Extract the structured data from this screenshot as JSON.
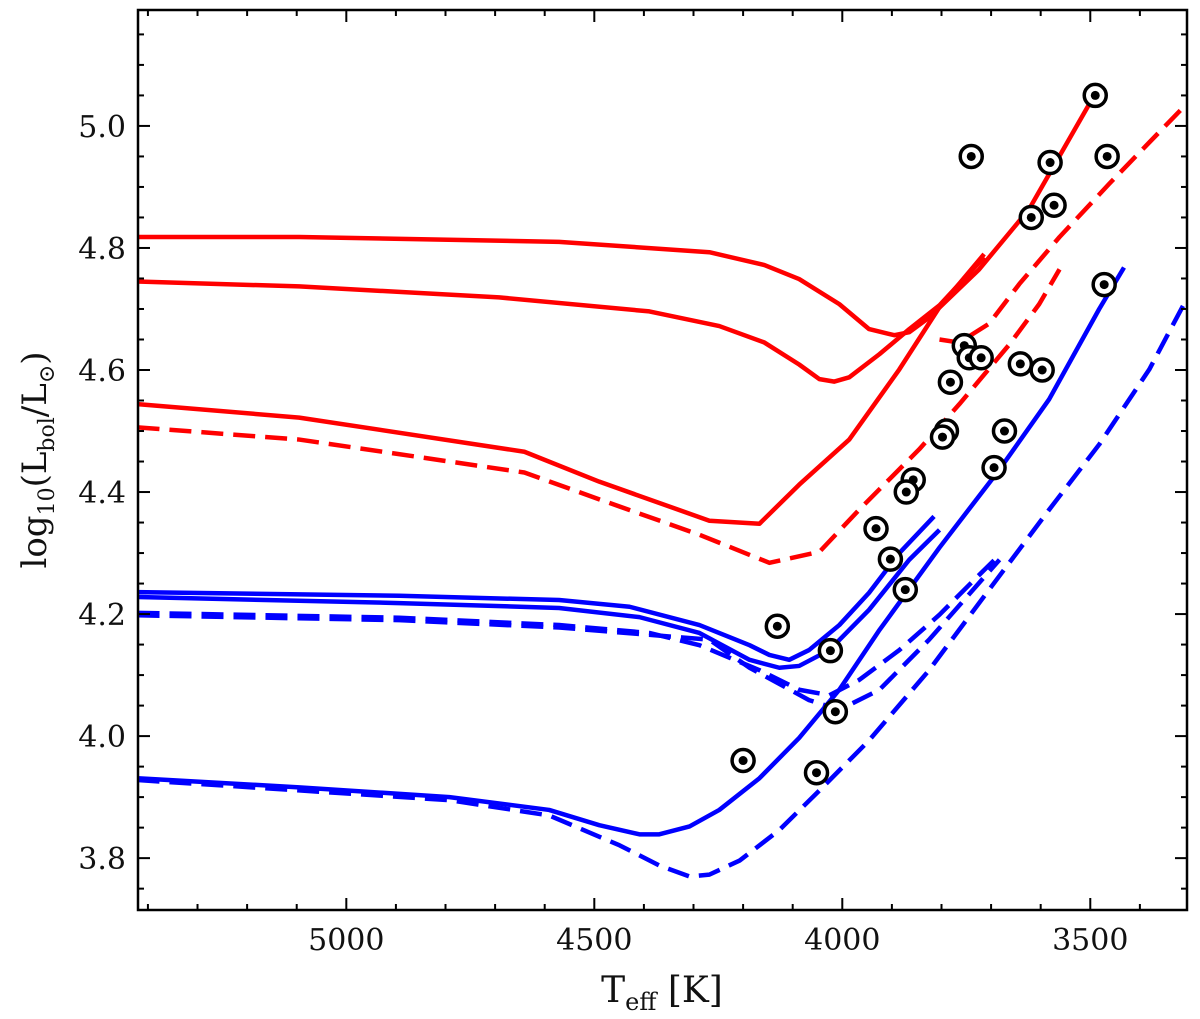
{
  "chart_data": {
    "type": "line",
    "title": "",
    "xlabel": {
      "main": "T",
      "sub": "eff",
      "rest": " [K]"
    },
    "ylabel": {
      "pre": "log",
      "sub1": "10",
      "mid": "(L",
      "sub2": "bol",
      "mid2": "/L",
      "sub3": "⊙",
      "post": ")"
    },
    "xlim": [
      5420,
      3305
    ],
    "ylim": [
      3.715,
      5.19
    ],
    "x_reversed": true,
    "xticks": [
      5000,
      4500,
      4000,
      3500
    ],
    "xtick_labels": [
      "5000",
      "4500",
      "4000",
      "3500"
    ],
    "yticks": [
      3.8,
      4.0,
      4.2,
      4.4,
      4.6,
      4.8,
      5.0
    ],
    "ytick_labels": [
      "3.8",
      "4.0",
      "4.2",
      "4.4",
      "4.6",
      "4.8",
      "5.0"
    ],
    "grid": false,
    "colors": {
      "red": "#ff0000",
      "blue": "#0000ff",
      "marker": "#000000"
    },
    "series": [
      {
        "color": "#ff0000",
        "style": "solid",
        "points": [
          [
            5421,
            4.818
          ],
          [
            5095,
            4.818
          ],
          [
            4571,
            4.81
          ],
          [
            4268,
            4.793
          ],
          [
            4157,
            4.772
          ],
          [
            4087,
            4.749
          ],
          [
            4006,
            4.708
          ],
          [
            3946,
            4.667
          ],
          [
            3895,
            4.657
          ],
          [
            3865,
            4.662
          ],
          [
            3825,
            4.686
          ],
          [
            3724,
            4.765
          ],
          [
            3623,
            4.864
          ],
          [
            3502,
            5.036
          ],
          [
            3482,
            5.06
          ]
        ]
      },
      {
        "color": "#ff0000",
        "style": "solid",
        "points": [
          [
            5421,
            4.745
          ],
          [
            5095,
            4.737
          ],
          [
            4692,
            4.719
          ],
          [
            4389,
            4.696
          ],
          [
            4248,
            4.672
          ],
          [
            4157,
            4.645
          ],
          [
            4087,
            4.609
          ],
          [
            4046,
            4.585
          ],
          [
            4016,
            4.581
          ],
          [
            3986,
            4.588
          ],
          [
            3925,
            4.626
          ],
          [
            3865,
            4.667
          ],
          [
            3804,
            4.706
          ],
          [
            3714,
            4.785
          ]
        ]
      },
      {
        "color": "#ff0000",
        "style": "solid",
        "points": [
          [
            5421,
            4.544
          ],
          [
            5095,
            4.522
          ],
          [
            4641,
            4.466
          ],
          [
            4490,
            4.417
          ],
          [
            4268,
            4.353
          ],
          [
            4167,
            4.348
          ],
          [
            4087,
            4.412
          ],
          [
            3986,
            4.486
          ],
          [
            3885,
            4.601
          ],
          [
            3804,
            4.703
          ],
          [
            3714,
            4.79
          ]
        ]
      },
      {
        "color": "#ff0000",
        "style": "dashed",
        "points": [
          [
            3804,
            4.65
          ],
          [
            3764,
            4.645
          ],
          [
            3704,
            4.676
          ],
          [
            3643,
            4.741
          ],
          [
            3562,
            4.818
          ],
          [
            3462,
            4.905
          ],
          [
            3306,
            5.036
          ]
        ]
      },
      {
        "color": "#ff0000",
        "style": "dashed",
        "points": [
          [
            5421,
            4.506
          ],
          [
            5095,
            4.486
          ],
          [
            4641,
            4.432
          ],
          [
            4490,
            4.388
          ],
          [
            4288,
            4.33
          ],
          [
            4147,
            4.284
          ],
          [
            4046,
            4.302
          ],
          [
            3966,
            4.371
          ],
          [
            3845,
            4.47
          ],
          [
            3764,
            4.544
          ],
          [
            3663,
            4.642
          ],
          [
            3603,
            4.708
          ],
          [
            3562,
            4.765
          ]
        ]
      },
      {
        "color": "#0000ff",
        "style": "solid",
        "points": [
          [
            5421,
            4.236
          ],
          [
            4893,
            4.23
          ],
          [
            4571,
            4.223
          ],
          [
            4429,
            4.212
          ],
          [
            4288,
            4.182
          ],
          [
            4187,
            4.149
          ],
          [
            4147,
            4.133
          ],
          [
            4107,
            4.125
          ],
          [
            4067,
            4.141
          ],
          [
            4006,
            4.182
          ],
          [
            3946,
            4.235
          ],
          [
            3885,
            4.3
          ],
          [
            3815,
            4.36
          ]
        ]
      },
      {
        "color": "#0000ff",
        "style": "solid",
        "points": [
          [
            5421,
            4.228
          ],
          [
            4893,
            4.218
          ],
          [
            4571,
            4.21
          ],
          [
            4409,
            4.195
          ],
          [
            4288,
            4.169
          ],
          [
            4187,
            4.125
          ],
          [
            4127,
            4.112
          ],
          [
            4087,
            4.115
          ],
          [
            4026,
            4.141
          ],
          [
            3946,
            4.207
          ],
          [
            3865,
            4.289
          ],
          [
            3804,
            4.338
          ]
        ]
      },
      {
        "color": "#0000ff",
        "style": "solid",
        "points": [
          [
            5421,
            3.931
          ],
          [
            5095,
            3.916
          ],
          [
            4792,
            3.9
          ],
          [
            4591,
            3.879
          ],
          [
            4490,
            3.854
          ],
          [
            4409,
            3.839
          ],
          [
            4369,
            3.839
          ],
          [
            4308,
            3.852
          ],
          [
            4248,
            3.879
          ],
          [
            4167,
            3.931
          ],
          [
            4087,
            3.997
          ],
          [
            4006,
            4.076
          ],
          [
            3925,
            4.174
          ],
          [
            3804,
            4.309
          ],
          [
            3683,
            4.437
          ],
          [
            3583,
            4.552
          ],
          [
            3482,
            4.7
          ],
          [
            3432,
            4.768
          ]
        ]
      },
      {
        "color": "#0000ff",
        "style": "dashed",
        "points": [
          [
            5421,
            4.202
          ],
          [
            4893,
            4.194
          ],
          [
            4571,
            4.182
          ],
          [
            4389,
            4.169
          ],
          [
            4288,
            4.149
          ],
          [
            4167,
            4.108
          ],
          [
            4087,
            4.076
          ],
          [
            4026,
            4.067
          ],
          [
            3966,
            4.092
          ],
          [
            3885,
            4.141
          ],
          [
            3804,
            4.199
          ],
          [
            3744,
            4.248
          ],
          [
            3683,
            4.297
          ]
        ]
      },
      {
        "color": "#0000ff",
        "style": "dashed",
        "points": [
          [
            5421,
            4.198
          ],
          [
            4893,
            4.19
          ],
          [
            4571,
            4.178
          ],
          [
            4268,
            4.158
          ],
          [
            4187,
            4.112
          ],
          [
            4067,
            4.059
          ],
          [
            4006,
            4.043
          ],
          [
            3925,
            4.076
          ],
          [
            3825,
            4.158
          ],
          [
            3683,
            4.289
          ]
        ]
      },
      {
        "color": "#0000ff",
        "style": "dashed",
        "points": [
          [
            5421,
            3.928
          ],
          [
            5095,
            3.911
          ],
          [
            4792,
            3.895
          ],
          [
            4591,
            3.87
          ],
          [
            4449,
            3.821
          ],
          [
            4369,
            3.788
          ],
          [
            4308,
            3.77
          ],
          [
            4268,
            3.773
          ],
          [
            4207,
            3.796
          ],
          [
            4127,
            3.846
          ],
          [
            4046,
            3.911
          ],
          [
            3946,
            3.993
          ],
          [
            3825,
            4.108
          ],
          [
            3704,
            4.24
          ],
          [
            3583,
            4.371
          ],
          [
            3482,
            4.478
          ],
          [
            3381,
            4.601
          ],
          [
            3306,
            4.716
          ]
        ]
      }
    ],
    "stars": [
      [
        3490,
        5.05
      ],
      [
        3740,
        4.95
      ],
      [
        3581,
        4.94
      ],
      [
        3466,
        4.95
      ],
      [
        3619,
        4.85
      ],
      [
        3573,
        4.87
      ],
      [
        3472,
        4.74
      ],
      [
        3754,
        4.64
      ],
      [
        3744,
        4.62
      ],
      [
        3720,
        4.62
      ],
      [
        3782,
        4.58
      ],
      [
        3641,
        4.61
      ],
      [
        3597,
        4.6
      ],
      [
        3790,
        4.5
      ],
      [
        3798,
        4.49
      ],
      [
        3673,
        4.5
      ],
      [
        3694,
        4.44
      ],
      [
        3857,
        4.42
      ],
      [
        3871,
        4.4
      ],
      [
        3932,
        4.34
      ],
      [
        3903,
        4.29
      ],
      [
        3873,
        4.24
      ],
      [
        4131,
        4.18
      ],
      [
        4024,
        4.14
      ],
      [
        4014,
        4.04
      ],
      [
        4200,
        3.96
      ],
      [
        4052,
        3.94
      ]
    ]
  }
}
